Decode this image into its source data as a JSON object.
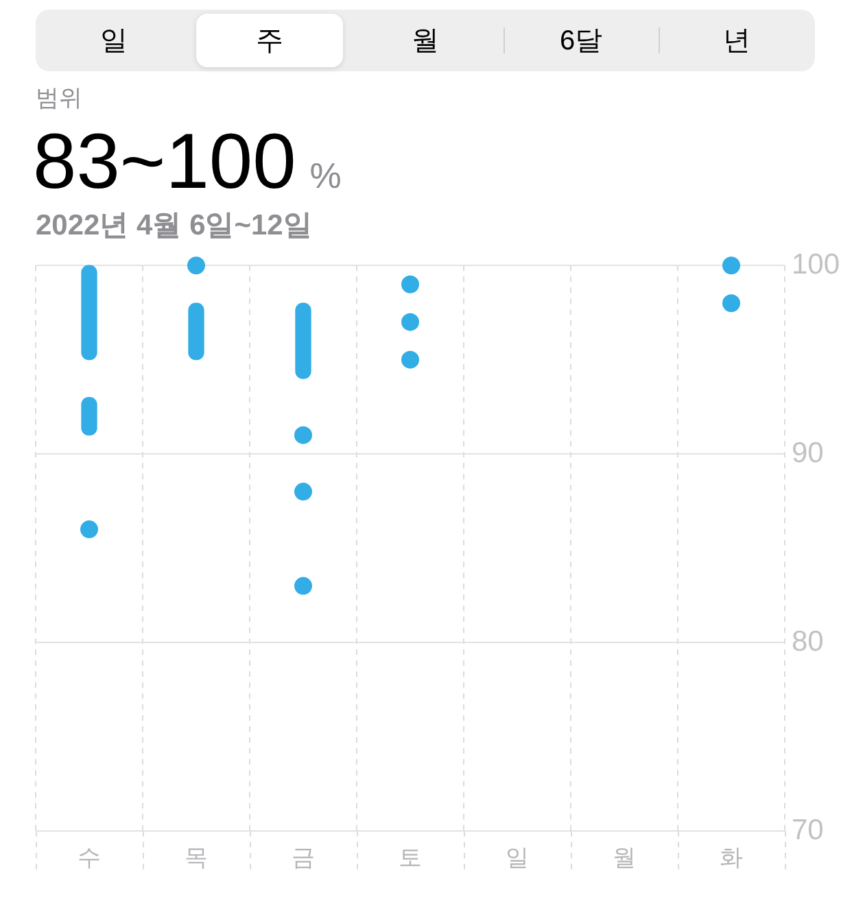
{
  "chart_data": {
    "type": "bar",
    "title": "범위",
    "subtitle": "83~100 %",
    "annotations": [
      "일",
      "주",
      "월",
      "6달",
      "년",
      "2022년 4월 6일~12일"
    ],
    "categories": [
      "수",
      "목",
      "금",
      "토",
      "일",
      "월",
      "화"
    ],
    "series": [
      {
        "color": "#32ade6",
        "base": [
          95,
          95,
          94,
          null,
          null,
          null,
          null
        ],
        "values": [
          5,
          3,
          4,
          null,
          null,
          null,
          null
        ]
      },
      {
        "color": "#32ade6",
        "base": [
          91,
          null,
          null,
          null,
          null,
          null,
          null
        ],
        "values": [
          2,
          null,
          null,
          null,
          null,
          null,
          null
        ]
      },
      {
        "type": "scatter",
        "color": "#32ade6",
        "x": [
          "수",
          "목",
          "금",
          "금",
          "금",
          "토",
          "토",
          "토",
          "화",
          "화"
        ],
        "values": [
          86,
          100,
          91,
          88,
          83,
          99,
          97,
          95,
          100,
          98
        ]
      }
    ],
    "ylim": [
      70,
      100
    ],
    "yticks": [
      70,
      80,
      90,
      100
    ],
    "grid": true,
    "legend": false,
    "marker": "circle"
  }
}
